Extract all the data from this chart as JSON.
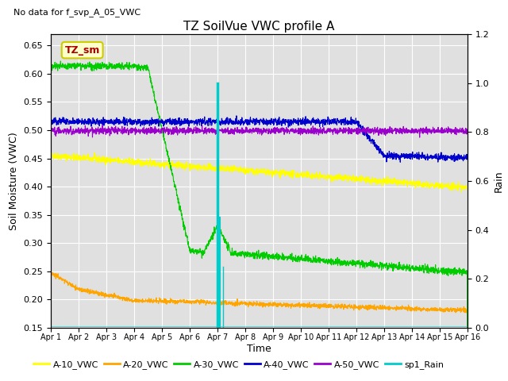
{
  "title": "TZ SoilVue VWC profile A",
  "no_data_text": "No data for f_svp_A_05_VWC",
  "ylabel_left": "Soil Moisture (VWC)",
  "ylabel_right": "Rain",
  "xlabel": "Time",
  "ylim_left": [
    0.15,
    0.67
  ],
  "ylim_right": [
    0.0,
    1.2
  ],
  "xlim": [
    0,
    15
  ],
  "yticks_left": [
    0.15,
    0.2,
    0.25,
    0.3,
    0.35,
    0.4,
    0.45,
    0.5,
    0.55,
    0.6,
    0.65
  ],
  "yticks_right": [
    0.0,
    0.2,
    0.4,
    0.6,
    0.8,
    1.0,
    1.2
  ],
  "xtick_labels": [
    "Apr 1",
    "Apr 2",
    "Apr 3",
    "Apr 4",
    "Apr 5",
    "Apr 6",
    "Apr 7",
    "Apr 8",
    "Apr 9",
    "Apr 10",
    "Apr 11",
    "Apr 12",
    "Apr 13",
    "Apr 14",
    "Apr 15",
    "Apr 16"
  ],
  "colors": {
    "A10": "#ffff00",
    "A20": "#ffa500",
    "A30": "#00cc00",
    "A40": "#0000cc",
    "A50": "#9900cc",
    "rain": "#00cccc",
    "bg": "#e0e0e0",
    "tz_sm_box_bg": "#ffffcc",
    "tz_sm_box_border": "#cccc00",
    "tz_sm_text": "#aa0000"
  },
  "legend_labels": [
    "A-10_VWC",
    "A-20_VWC",
    "A-30_VWC",
    "A-40_VWC",
    "A-50_VWC",
    "sp1_Rain"
  ]
}
